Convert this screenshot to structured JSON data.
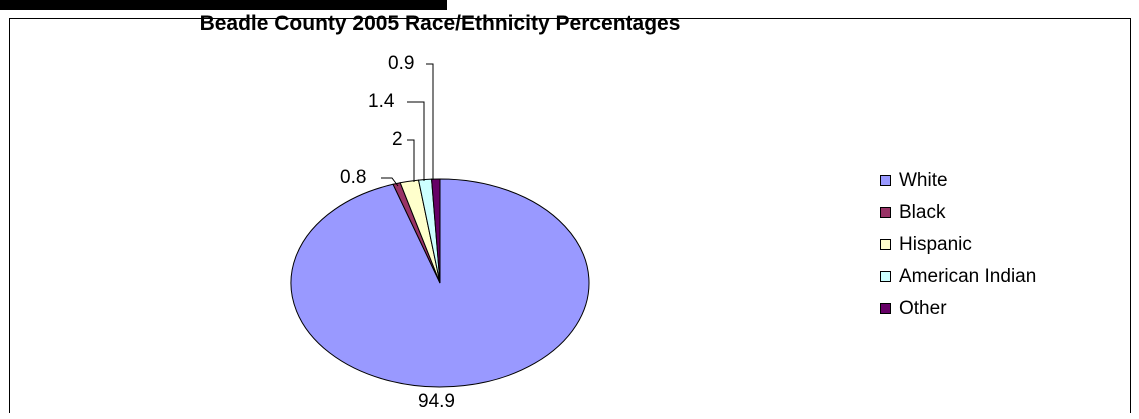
{
  "chart_data": {
    "type": "pie",
    "title": "Beadle County 2005 Race/Ethnicity Percentages",
    "categories": [
      "White",
      "Black",
      "Hispanic",
      "American Indian",
      "Other"
    ],
    "values": [
      94.9,
      0.8,
      2,
      1.4,
      0.9
    ],
    "value_labels": [
      "94.9",
      "0.8",
      "2",
      "1.4",
      "0.9"
    ],
    "colors": [
      "#9999FF",
      "#993366",
      "#FFFFCC",
      "#CCFFFF",
      "#660066"
    ],
    "legend": {
      "position": "right"
    }
  }
}
